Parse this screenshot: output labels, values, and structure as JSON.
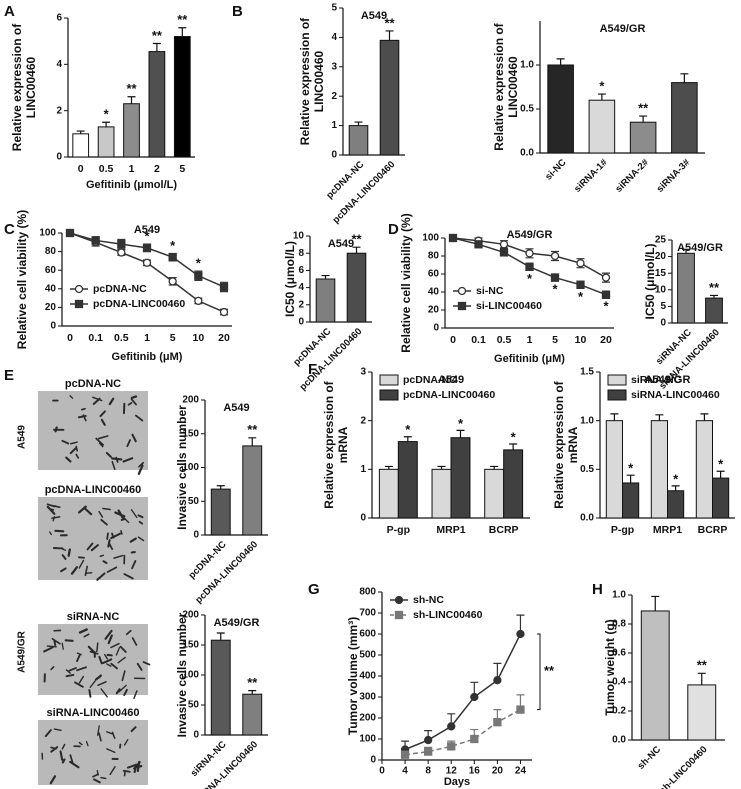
{
  "chart_data": [
    {
      "type": "bar",
      "panel": "A",
      "categories": [
        "0",
        "0.5",
        "1",
        "2",
        "5"
      ],
      "values": [
        1.0,
        1.3,
        2.3,
        4.55,
        5.2
      ],
      "errors": [
        0.12,
        0.2,
        0.3,
        0.35,
        0.38
      ],
      "colors": [
        "#ffffff",
        "#c8c8c8",
        "#8c8c8c",
        "#505050",
        "#000000"
      ],
      "annotations": [
        null,
        "*",
        "**",
        "**",
        "**"
      ],
      "ylabel": [
        "Relative expression of",
        "LINC00460"
      ],
      "xlabel": "Gefitinib (μmol/L)",
      "ylim": [
        0,
        6
      ],
      "yticks": [
        0,
        2,
        4,
        6
      ]
    },
    {
      "type": "bar",
      "panel": "B",
      "title": "A549",
      "categories": [
        "pcDNA-NC",
        "pcDNA-LINC00460"
      ],
      "values": [
        1.0,
        3.9
      ],
      "errors": [
        0.12,
        0.32
      ],
      "colors": [
        "#7f7f7f",
        "#4d4d4d"
      ],
      "annotations": [
        null,
        "**"
      ],
      "ylabel": [
        "Relative expression of",
        "LINC00460"
      ],
      "ylim": [
        0,
        5
      ],
      "yticks": [
        0,
        1,
        2,
        3,
        4,
        5
      ],
      "rotate_labels": true
    },
    {
      "type": "bar",
      "title": "A549/GR",
      "categories": [
        "si-NC",
        "siRNA-1#",
        "siRNA-2#",
        "siRNA-3#"
      ],
      "values": [
        1.0,
        0.6,
        0.35,
        0.8
      ],
      "errors": [
        0.07,
        0.07,
        0.07,
        0.1
      ],
      "colors": [
        "#262626",
        "#d9d9d9",
        "#8c8c8c",
        "#4d4d4d"
      ],
      "annotations": [
        null,
        "*",
        "**",
        null
      ],
      "ylabel": [
        "Relative expression of",
        "LINC00460"
      ],
      "ylim": [
        0,
        1.5
      ],
      "yticks": [
        {
          "value": 0,
          "label": "0.0"
        },
        0.5,
        {
          "value": 1,
          "label": "1.0"
        }
      ],
      "rotate_labels": true
    },
    {
      "type": "line",
      "panel": "C",
      "title": "A549",
      "categories": [
        "0",
        "0.1",
        "0.5",
        "1",
        "5",
        "10",
        "20"
      ],
      "series": [
        {
          "name": "pcDNA-NC",
          "color": "#333333",
          "marker": "circle",
          "fill": "#ffffff",
          "values": [
            100,
            90,
            79,
            68,
            48,
            27,
            15
          ],
          "errors": [
            2,
            4,
            3,
            3,
            4,
            3,
            3
          ]
        },
        {
          "name": "pcDNA-LINC00460",
          "color": "#333333",
          "marker": "square",
          "fill": "#333333",
          "values": [
            100,
            92,
            88,
            84,
            74,
            54,
            42
          ],
          "errors": [
            2,
            4,
            5,
            4,
            4,
            5,
            5
          ]
        }
      ],
      "annotations": [
        null,
        null,
        null,
        "*",
        "*",
        "*",
        null
      ],
      "annotation_position": "above",
      "ylabel": "Relative cell viability (%)",
      "xlabel": "Gefitinib (μM)",
      "ylim": [
        0,
        100
      ],
      "yticks": [
        0,
        20,
        40,
        60,
        80,
        100
      ],
      "legend": "lower left"
    },
    {
      "type": "bar",
      "title": "A549",
      "categories": [
        "pcDNA-NC",
        "pcDNA-LINC00460"
      ],
      "values": [
        5.0,
        8.0
      ],
      "errors": [
        0.4,
        0.7
      ],
      "colors": [
        "#7f7f7f",
        "#4d4d4d"
      ],
      "annotations": [
        null,
        "**"
      ],
      "ylabel": "IC50 (μmol/L)",
      "ylim": [
        0,
        10
      ],
      "yticks": [
        0,
        2,
        4,
        6,
        8,
        10
      ],
      "rotate_labels": true
    },
    {
      "type": "line",
      "panel": "D",
      "title": "A549/GR",
      "categories": [
        "0",
        "0.1",
        "0.5",
        "1",
        "5",
        "10",
        "20"
      ],
      "series": [
        {
          "name": "si-NC",
          "color": "#333333",
          "marker": "circle",
          "fill": "#ffffff",
          "values": [
            100,
            97,
            93,
            83,
            80,
            72,
            56
          ],
          "errors": [
            2,
            3,
            4,
            5,
            5,
            5,
            5
          ]
        },
        {
          "name": "si-LINC00460",
          "color": "#333333",
          "marker": "square",
          "fill": "#333333",
          "values": [
            100,
            93,
            84,
            68,
            56,
            48,
            37
          ],
          "errors": [
            2,
            3,
            3,
            4,
            4,
            4,
            4
          ]
        }
      ],
      "annotations": [
        null,
        null,
        null,
        "*",
        "*",
        "*",
        "*"
      ],
      "annotation_position": "below",
      "ylabel": "Relative cell viability (%)",
      "xlabel": "Gefitinib (μM)",
      "ylim": [
        0,
        100
      ],
      "yticks": [
        0,
        20,
        40,
        60,
        80,
        100
      ],
      "legend": "lower left"
    },
    {
      "type": "bar",
      "title": "A549/GR",
      "categories": [
        "siRNA-NC",
        "siRNA-LINC00460"
      ],
      "values": [
        21,
        7.5
      ],
      "errors": [
        1.2,
        0.8
      ],
      "colors": [
        "#7f7f7f",
        "#4d4d4d"
      ],
      "annotations": [
        null,
        "**"
      ],
      "ylabel": "IC50 (μmol/L)",
      "ylim": [
        0,
        25
      ],
      "yticks": [
        0,
        5,
        10,
        15,
        20,
        25
      ],
      "rotate_labels": true
    },
    {
      "type": "micrographs",
      "panel": "E",
      "groups": [
        {
          "name": "A549",
          "images": [
            "pcDNA-NC",
            "pcDNA-LINC00460"
          ]
        },
        {
          "name": "A549/GR",
          "images": [
            "siRNA-NC",
            "siRNA-LINC00460"
          ]
        }
      ]
    },
    {
      "type": "bar",
      "title": "A549",
      "categories": [
        "pcDNA-NC",
        "pcDNA-LINC00460"
      ],
      "values": [
        68,
        132
      ],
      "errors": [
        5,
        12
      ],
      "colors": [
        "#595959",
        "#7f7f7f"
      ],
      "annotations": [
        null,
        "**"
      ],
      "ylabel": "Invasive cells number",
      "ylim": [
        0,
        200
      ],
      "yticks": [
        0,
        50,
        100,
        150,
        200
      ],
      "rotate_labels": true
    },
    {
      "type": "bar",
      "title": "A549/GR",
      "categories": [
        "siRNA-NC",
        "siRNA-LINC00460"
      ],
      "values": [
        158,
        68
      ],
      "errors": [
        12,
        6
      ],
      "colors": [
        "#595959",
        "#7f7f7f"
      ],
      "annotations": [
        null,
        "**"
      ],
      "ylabel": "Invasive cells number",
      "ylim": [
        0,
        200
      ],
      "yticks": [
        0,
        50,
        100,
        150,
        200
      ],
      "rotate_labels": true
    },
    {
      "type": "bar",
      "panel": "F",
      "title": "A549",
      "categories": [
        "P-gp",
        "MRP1",
        "BCRP"
      ],
      "series": [
        {
          "name": "pcDNA-NC",
          "color": "#d9d9d9",
          "values": [
            1,
            1,
            1
          ],
          "errors": [
            0.06,
            0.06,
            0.06
          ]
        },
        {
          "name": "pcDNA-LINC00460",
          "color": "#404040",
          "values": [
            1.57,
            1.65,
            1.4
          ],
          "errors": [
            0.1,
            0.15,
            0.12
          ],
          "annotations": [
            "*",
            "*",
            "*"
          ]
        }
      ],
      "ylabel": [
        "Relative expression of",
        "mRNA"
      ],
      "ylim": [
        0,
        3
      ],
      "yticks": [
        0,
        1,
        2,
        3
      ],
      "legend": "upper left"
    },
    {
      "type": "bar",
      "title": "A549/GR",
      "categories": [
        "P-gp",
        "MRP1",
        "BCRP"
      ],
      "series": [
        {
          "name": "siRNA-NC",
          "color": "#d9d9d9",
          "values": [
            1,
            1,
            1
          ],
          "errors": [
            0.07,
            0.06,
            0.07
          ]
        },
        {
          "name": "siRNA-LINC00460",
          "color": "#404040",
          "values": [
            0.36,
            0.28,
            0.41
          ],
          "errors": [
            0.08,
            0.05,
            0.07
          ],
          "annotations": [
            "*",
            "*",
            "*"
          ]
        }
      ],
      "ylabel": [
        "Relative expression of",
        "mRNA"
      ],
      "ylim": [
        0,
        1.5
      ],
      "yticks": [
        {
          "value": 0,
          "label": "0.0"
        },
        0.5,
        {
          "value": 1,
          "label": "1.0"
        },
        1.5
      ],
      "legend": "upper left"
    },
    {
      "type": "line",
      "panel": "G",
      "x": [
        4,
        8,
        12,
        16,
        20,
        24
      ],
      "series": [
        {
          "name": "sh-NC",
          "color": "#333333",
          "marker": "circle",
          "fill": "#333333",
          "values": [
            50,
            95,
            160,
            300,
            380,
            600
          ],
          "errors": [
            40,
            45,
            60,
            70,
            80,
            90
          ]
        },
        {
          "name": "sh-LINC00460",
          "color": "#777777",
          "dash": true,
          "marker": "square",
          "fill": "#777777",
          "values": [
            25,
            40,
            65,
            100,
            180,
            240
          ],
          "errors": [
            15,
            20,
            25,
            45,
            60,
            70
          ]
        }
      ],
      "annotation": "**",
      "ylabel": "Tumor volume (mm³)",
      "xlabel": "Days",
      "xlim": [
        0,
        26
      ],
      "xticks": [
        0,
        4,
        8,
        12,
        16,
        20,
        24
      ],
      "ylim": [
        0,
        800
      ],
      "yticks": [
        0,
        100,
        200,
        300,
        400,
        500,
        600,
        700,
        800
      ],
      "legend": "upper left"
    },
    {
      "type": "bar",
      "panel": "H",
      "categories": [
        "sh-NC",
        "sh-LINC00460"
      ],
      "values": [
        0.89,
        0.38
      ],
      "errors": [
        0.1,
        0.08
      ],
      "colors": [
        "#bfbfbf",
        "#e0e0e0"
      ],
      "annotations": [
        null,
        "**"
      ],
      "ylabel": "Tumor weight (g)",
      "ylim": [
        0,
        1
      ],
      "yticks": [
        {
          "value": 0,
          "label": "0.0"
        },
        0.2,
        0.4,
        0.6,
        0.8,
        {
          "value": 1,
          "label": "1.0"
        }
      ],
      "rotate_labels": true
    }
  ]
}
